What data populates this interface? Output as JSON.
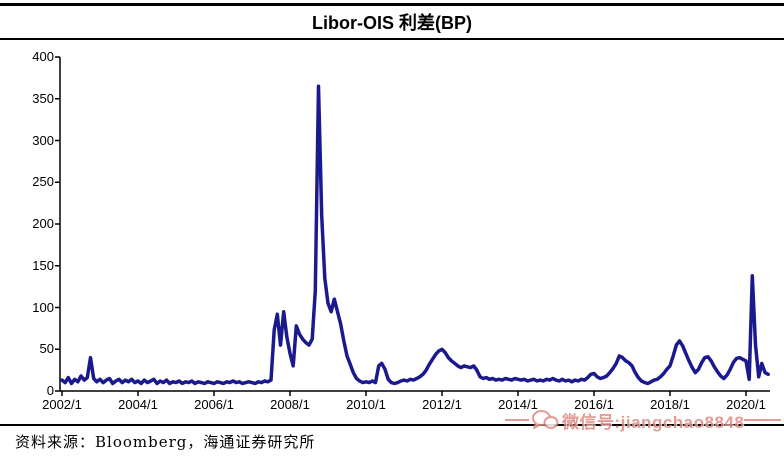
{
  "header": {
    "title": "Libor-OIS 利差(BP)"
  },
  "footer": {
    "source": "资料来源：Bloomberg，海通证券研究所"
  },
  "watermark": {
    "label": "微信号:jiangchao8848",
    "icon": "wechat-chat-bubbles",
    "color": "#e08a84"
  },
  "chart_data": {
    "type": "line",
    "title": "Libor-OIS 利差(BP)",
    "xlabel": "",
    "ylabel": "",
    "ylim": [
      0,
      400
    ],
    "xlim_years": [
      2002.0,
      2020.67
    ],
    "grid": false,
    "legend": "none",
    "line_color": "#1a1a8e",
    "y_ticks": [
      0,
      50,
      100,
      150,
      200,
      250,
      300,
      350,
      400
    ],
    "x_tick_labels": [
      "2002/1",
      "2004/1",
      "2006/1",
      "2008/1",
      "2010/1",
      "2012/1",
      "2014/1",
      "2016/1",
      "2018/1",
      "2020/1"
    ],
    "x_tick_years": [
      2002,
      2004,
      2006,
      2008,
      2010,
      2012,
      2014,
      2016,
      2018,
      2020
    ],
    "series": [
      {
        "name": "Libor-OIS spread (BP)",
        "start_year": 2002,
        "start_month": 1,
        "interval_months": 1,
        "values": [
          13,
          10,
          16,
          9,
          14,
          11,
          18,
          13,
          16,
          40,
          15,
          11,
          14,
          10,
          13,
          15,
          9,
          12,
          14,
          10,
          13,
          11,
          14,
          10,
          12,
          9,
          13,
          10,
          12,
          14,
          9,
          12,
          10,
          13,
          9,
          11,
          10,
          12,
          9,
          11,
          10,
          12,
          9,
          11,
          10,
          9,
          11,
          10,
          9,
          11,
          10,
          9,
          11,
          10,
          12,
          10,
          11,
          9,
          10,
          11,
          10,
          9,
          11,
          10,
          12,
          11,
          13,
          73,
          92,
          55,
          95,
          65,
          45,
          30,
          78,
          68,
          62,
          58,
          55,
          62,
          120,
          365,
          210,
          135,
          105,
          95,
          110,
          95,
          80,
          60,
          42,
          32,
          22,
          15,
          12,
          10,
          11,
          10,
          12,
          10,
          30,
          33,
          26,
          14,
          10,
          9,
          10,
          12,
          13,
          12,
          14,
          13,
          15,
          17,
          20,
          25,
          32,
          38,
          44,
          48,
          50,
          46,
          40,
          36,
          33,
          30,
          28,
          30,
          29,
          28,
          30,
          25,
          17,
          15,
          16,
          14,
          15,
          13,
          14,
          13,
          15,
          14,
          13,
          15,
          14,
          13,
          14,
          12,
          13,
          14,
          12,
          13,
          12,
          14,
          13,
          15,
          13,
          12,
          14,
          12,
          13,
          11,
          13,
          12,
          14,
          13,
          16,
          20,
          21,
          17,
          15,
          16,
          18,
          22,
          27,
          33,
          42,
          40,
          36,
          34,
          30,
          22,
          16,
          12,
          10,
          9,
          11,
          13,
          14,
          17,
          21,
          26,
          30,
          42,
          55,
          60,
          54,
          45,
          36,
          28,
          22,
          26,
          34,
          40,
          41,
          36,
          29,
          23,
          18,
          15,
          19,
          26,
          34,
          39,
          40,
          38,
          36,
          14,
          138,
          55,
          17,
          33,
          22,
          20
        ]
      }
    ]
  }
}
